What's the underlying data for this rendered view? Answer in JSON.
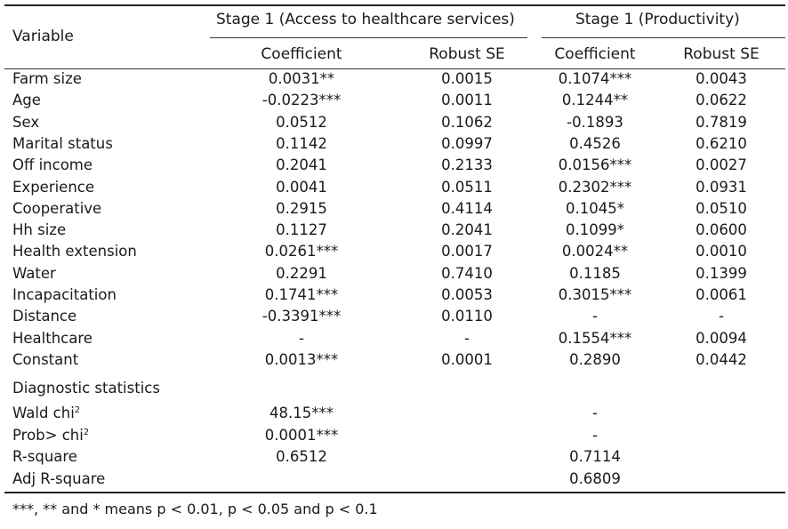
{
  "header": {
    "variable": "Variable",
    "stage_a": "Stage 1 (Access to healthcare services)",
    "stage_b": "Stage 1 (Productivity)",
    "coef_a": "Coefficient",
    "se_a": "Robust SE",
    "coef_b": "Coefficient",
    "se_b": "Robust SE"
  },
  "rows": [
    {
      "name": "Farm size",
      "c1": "0.0031**",
      "s1": "0.0015",
      "c2": "0.1074***",
      "s2": "0.0043"
    },
    {
      "name": "Age",
      "c1": "-0.0223***",
      "s1": "0.0011",
      "c2": "0.1244**",
      "s2": "0.0622"
    },
    {
      "name": "Sex",
      "c1": "0.0512",
      "s1": "0.1062",
      "c2": "-0.1893",
      "s2": "0.7819"
    },
    {
      "name": "Marital status",
      "c1": "0.1142",
      "s1": "0.0997",
      "c2": "0.4526",
      "s2": "0.6210"
    },
    {
      "name": "Off income",
      "c1": "0.2041",
      "s1": "0.2133",
      "c2": "0.0156***",
      "s2": "0.0027"
    },
    {
      "name": "Experience",
      "c1": "0.0041",
      "s1": "0.0511",
      "c2": "0.2302***",
      "s2": "0.0931"
    },
    {
      "name": "Cooperative",
      "c1": "0.2915",
      "s1": "0.4114",
      "c2": "0.1045*",
      "s2": "0.0510"
    },
    {
      "name": "Hh size",
      "c1": "0.1127",
      "s1": "0.2041",
      "c2": "0.1099*",
      "s2": "0.0600"
    },
    {
      "name": "Health extension",
      "c1": "0.0261***",
      "s1": "0.0017",
      "c2": "0.0024**",
      "s2": "0.0010"
    },
    {
      "name": "Water",
      "c1": "0.2291",
      "s1": "0.7410",
      "c2": "0.1185",
      "s2": "0.1399"
    },
    {
      "name": "Incapacitation",
      "c1": "0.1741***",
      "s1": "0.0053",
      "c2": "0.3015***",
      "s2": "0.0061"
    },
    {
      "name": "Distance",
      "c1": "-0.3391***",
      "s1": "0.0110",
      "c2": "-",
      "s2": "-"
    },
    {
      "name": "Healthcare",
      "c1": "-",
      "s1": "-",
      "c2": "0.1554***",
      "s2": "0.0094"
    },
    {
      "name": "Constant",
      "c1": "0.0013***",
      "s1": "0.0001",
      "c2": "0.2890",
      "s2": "0.0442"
    }
  ],
  "diagnostics_label": "Diagnostic statistics",
  "diagnostics": [
    {
      "name": "Wald chi",
      "sup": "2",
      "c1": "48.15***",
      "c2": "-"
    },
    {
      "name": "Prob> chi",
      "sup": "2",
      "c1": "0.0001***",
      "c2": "-"
    },
    {
      "name": "R-square",
      "sup": "",
      "c1": "0.6512",
      "c2": "0.7114"
    },
    {
      "name": "Adj R-square",
      "sup": "",
      "c1": "",
      "c2": "0.6809"
    }
  ],
  "note": "***, ** and * means p < 0.01, p < 0.05 and p < 0.1"
}
